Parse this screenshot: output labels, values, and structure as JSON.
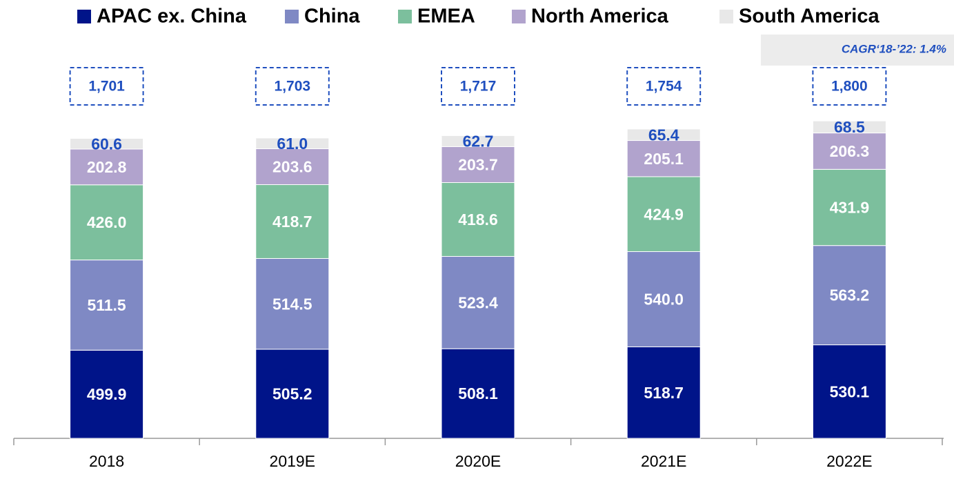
{
  "chart_data": {
    "type": "stacked_bar",
    "categories": [
      "2018",
      "2019E",
      "2020E",
      "2021E",
      "2022E"
    ],
    "series": [
      {
        "name": "APAC ex. China",
        "color": "#001489",
        "values": [
          499.9,
          505.2,
          508.1,
          518.7,
          530.1
        ],
        "value_labels": [
          "499.9",
          "505.2",
          "508.1",
          "518.7",
          "530.1"
        ]
      },
      {
        "name": "China",
        "color": "#7f89c4",
        "values": [
          511.5,
          514.5,
          523.4,
          540.0,
          563.2
        ],
        "value_labels": [
          "511.5",
          "514.5",
          "523.4",
          "540.0",
          "563.2"
        ]
      },
      {
        "name": "EMEA",
        "color": "#7cbf9d",
        "values": [
          426.0,
          418.7,
          418.6,
          424.9,
          431.9
        ],
        "value_labels": [
          "426.0",
          "418.7",
          "418.6",
          "424.9",
          "431.9"
        ]
      },
      {
        "name": "North America",
        "color": "#b1a3cd",
        "values": [
          202.8,
          203.6,
          203.7,
          205.1,
          206.3
        ],
        "value_labels": [
          "202.8",
          "203.6",
          "203.7",
          "205.1",
          "206.3"
        ]
      },
      {
        "name": "South America",
        "color": "#e8e8e8",
        "values": [
          60.6,
          61.0,
          62.7,
          65.4,
          68.5
        ],
        "value_labels": [
          "60.6",
          "61.0",
          "62.7",
          "65.4",
          "68.5"
        ]
      }
    ],
    "totals": {
      "values": [
        1701,
        1703,
        1717,
        1754,
        1800
      ],
      "value_labels": [
        "1,701",
        "1,703",
        "1,717",
        "1,754",
        "1,800"
      ]
    },
    "annotation": "CAGR‘18-’22: 1.4%",
    "ylim": [
      0,
      2000
    ]
  }
}
